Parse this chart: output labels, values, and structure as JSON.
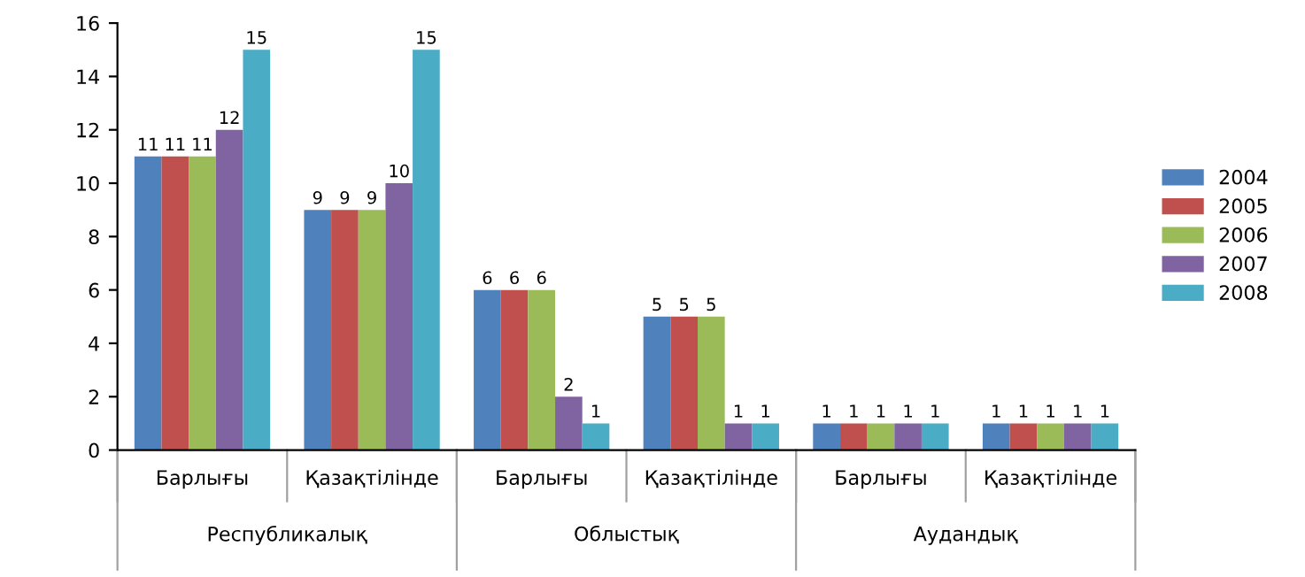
{
  "chart_data": {
    "type": "bar",
    "categories": [
      "Барлығы",
      "Қазақтілінде",
      "Барлығы",
      "Қазақтілінде",
      "Барлығы",
      "Қазақтілінде"
    ],
    "series": [
      {
        "name": "2004",
        "color": "#4f81bd",
        "values": [
          11,
          9,
          6,
          5,
          1,
          1
        ]
      },
      {
        "name": "2005",
        "color": "#c0504d",
        "values": [
          11,
          9,
          6,
          5,
          1,
          1
        ]
      },
      {
        "name": "2006",
        "color": "#9bbb59",
        "values": [
          11,
          9,
          6,
          5,
          1,
          1
        ]
      },
      {
        "name": "2007",
        "color": "#8064a2",
        "values": [
          12,
          10,
          2,
          1,
          1,
          1
        ]
      },
      {
        "name": "2008",
        "color": "#4bacc6",
        "values": [
          15,
          15,
          1,
          1,
          1,
          1
        ]
      }
    ],
    "annotations": [
      "Республикалық",
      "Облыстық",
      "Аудандық"
    ],
    "ylim": [
      0,
      16
    ],
    "yticks": [
      0,
      2,
      4,
      6,
      8,
      10,
      12,
      14,
      16
    ],
    "data_labels": true,
    "legend": "right",
    "grid": false
  }
}
